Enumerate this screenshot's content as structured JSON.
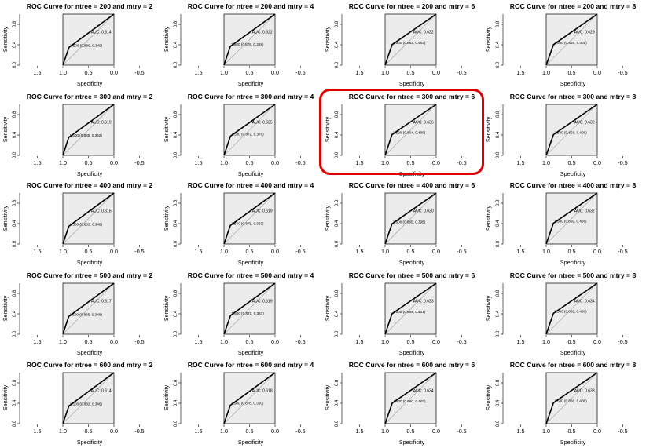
{
  "highlight": {
    "color": "#e00000",
    "ntree": 300,
    "mtry": 6
  },
  "chart_data": {
    "type": "line",
    "layout": {
      "rows": 5,
      "cols": 4
    },
    "xlabel": "Specificity",
    "ylabel": "Sensitivity",
    "xlim": [
      1.8,
      -0.8
    ],
    "ylim": [
      0,
      1
    ],
    "x_ticks": [
      "1.5",
      "1.0",
      "0.5",
      "0.0",
      "-0.5"
    ],
    "y_ticks": [
      "0.0",
      "0.4",
      "0.8"
    ],
    "colors": {
      "roc": "#000000",
      "diagonal": "#b0b0b0",
      "panel_fill": "#ececec"
    },
    "panels": [
      {
        "title": "ROC Curve for ntree = 200  and mtry = 2",
        "ntree": 200,
        "mtry": 2,
        "auc": "AUC: 0.614",
        "label": "1.500 (0.880, 0.349)",
        "specificity": 0.88,
        "sensitivity": 0.349
      },
      {
        "title": "ROC Curve for ntree = 200  and mtry = 4",
        "ntree": 200,
        "mtry": 4,
        "auc": "AUC: 0.622",
        "label": "1.500 (0.876, 0.368)",
        "specificity": 0.876,
        "sensitivity": 0.368
      },
      {
        "title": "ROC Curve for ntree = 200  and mtry = 6",
        "ntree": 200,
        "mtry": 6,
        "auc": "AUC: 0.632",
        "label": "1.500 (0.862, 0.403)",
        "specificity": 0.862,
        "sensitivity": 0.403
      },
      {
        "title": "ROC Curve for ntree = 200  and mtry = 8",
        "ntree": 200,
        "mtry": 8,
        "auc": "AUC: 0.629",
        "label": "1.500 (0.858, 0.401)",
        "specificity": 0.858,
        "sensitivity": 0.401
      },
      {
        "title": "ROC Curve for ntree = 300  and mtry = 2",
        "ntree": 300,
        "mtry": 2,
        "auc": "AUC: 0.619",
        "label": "1.500 (0.885, 0.352)",
        "specificity": 0.885,
        "sensitivity": 0.352
      },
      {
        "title": "ROC Curve for ntree = 300  and mtry = 4",
        "ntree": 300,
        "mtry": 4,
        "auc": "AUC: 0.625",
        "label": "1.500 (0.872, 0.378)",
        "specificity": 0.872,
        "sensitivity": 0.378
      },
      {
        "title": "ROC Curve for ntree = 300  and mtry = 6",
        "ntree": 300,
        "mtry": 6,
        "auc": "AUC: 0.636",
        "label": "1.500 (0.864, 0.408)",
        "specificity": 0.864,
        "sensitivity": 0.408
      },
      {
        "title": "ROC Curve for ntree = 300  and mtry = 8",
        "ntree": 300,
        "mtry": 8,
        "auc": "AUC: 0.632",
        "label": "1.500 (0.858, 0.406)",
        "specificity": 0.858,
        "sensitivity": 0.406
      },
      {
        "title": "ROC Curve for ntree = 400  and mtry = 2",
        "ntree": 400,
        "mtry": 2,
        "auc": "AUC: 0.616",
        "label": "1.500 (0.883, 0.348)",
        "specificity": 0.883,
        "sensitivity": 0.348
      },
      {
        "title": "ROC Curve for ntree = 400  and mtry = 4",
        "ntree": 400,
        "mtry": 4,
        "auc": "AUC: 0.619",
        "label": "1.500 (0.875, 0.363)",
        "specificity": 0.875,
        "sensitivity": 0.363
      },
      {
        "title": "ROC Curve for ntree = 400  and mtry = 6",
        "ntree": 400,
        "mtry": 6,
        "auc": "AUC: 0.630",
        "label": "1.500 (0.865, 0.395)",
        "specificity": 0.865,
        "sensitivity": 0.395
      },
      {
        "title": "ROC Curve for ntree = 400  and mtry = 8",
        "ntree": 400,
        "mtry": 8,
        "auc": "AUC: 0.632",
        "label": "1.500 (0.859, 0.406)",
        "specificity": 0.859,
        "sensitivity": 0.406
      },
      {
        "title": "ROC Curve for ntree = 500  and mtry = 2",
        "ntree": 500,
        "mtry": 2,
        "auc": "AUC: 0.617",
        "label": "1.500 (0.885, 0.349)",
        "specificity": 0.885,
        "sensitivity": 0.349
      },
      {
        "title": "ROC Curve for ntree = 500  and mtry = 4",
        "ntree": 500,
        "mtry": 4,
        "auc": "AUC: 0.619",
        "label": "1.500 (0.871, 0.367)",
        "specificity": 0.871,
        "sensitivity": 0.367
      },
      {
        "title": "ROC Curve for ntree = 500  and mtry = 6",
        "ntree": 500,
        "mtry": 6,
        "auc": "AUC: 0.633",
        "label": "1.500 (0.864, 0.401)",
        "specificity": 0.864,
        "sensitivity": 0.401
      },
      {
        "title": "ROC Curve for ntree = 500  and mtry = 8",
        "ntree": 500,
        "mtry": 8,
        "auc": "AUC: 0.634",
        "label": "1.500 (0.859, 0.408)",
        "specificity": 0.859,
        "sensitivity": 0.408
      },
      {
        "title": "ROC Curve for ntree = 600  and mtry = 2",
        "ntree": 600,
        "mtry": 2,
        "auc": "AUC: 0.614",
        "label": "1.500 (0.882, 0.346)",
        "specificity": 0.882,
        "sensitivity": 0.346
      },
      {
        "title": "ROC Curve for ntree = 600  and mtry = 4",
        "ntree": 600,
        "mtry": 4,
        "auc": "AUC: 0.618",
        "label": "1.500 (0.876, 0.360)",
        "specificity": 0.876,
        "sensitivity": 0.36
      },
      {
        "title": "ROC Curve for ntree = 600  and mtry = 6",
        "ntree": 600,
        "mtry": 6,
        "auc": "AUC: 0.634",
        "label": "1.500 (0.860, 0.403)",
        "specificity": 0.86,
        "sensitivity": 0.403
      },
      {
        "title": "ROC Curve for ntree = 600  and mtry = 8",
        "ntree": 600,
        "mtry": 8,
        "auc": "AUC: 0.633",
        "label": "1.500 (0.858, 0.408)",
        "specificity": 0.858,
        "sensitivity": 0.408
      }
    ]
  }
}
